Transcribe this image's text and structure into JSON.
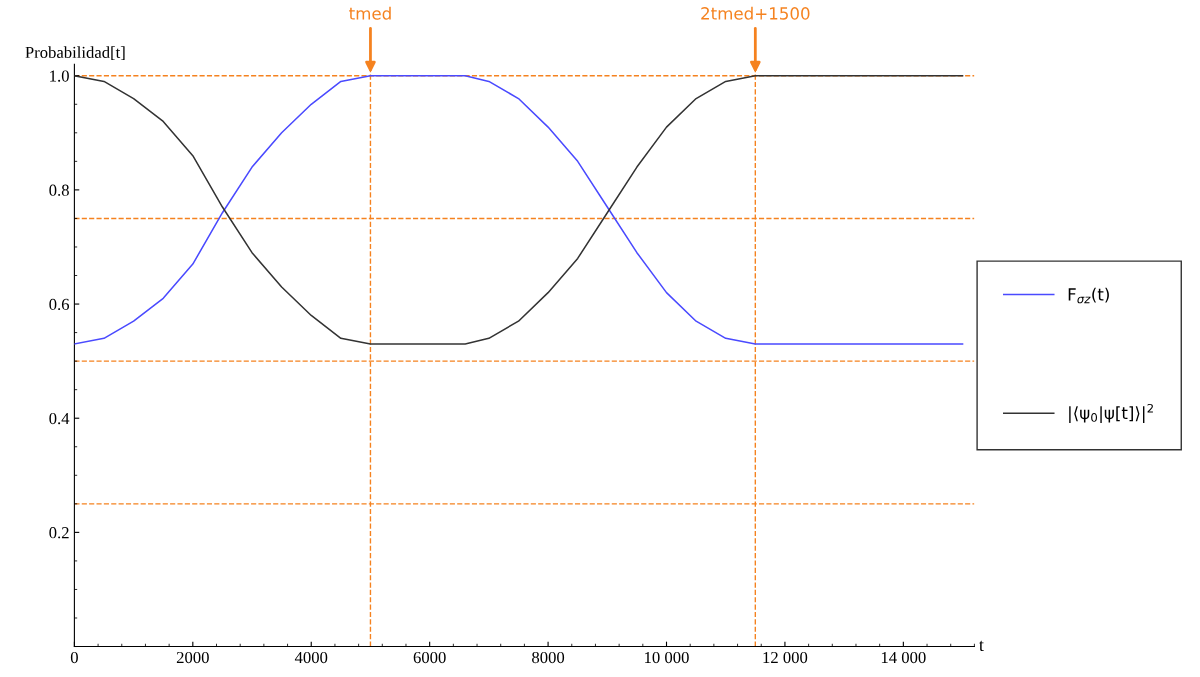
{
  "chart_data": {
    "type": "line",
    "xlabel": "t",
    "ylabel": "Probabilidad[t]",
    "xlim": [
      0,
      15200
    ],
    "ylim": [
      0,
      1.02
    ],
    "xticks": [
      0,
      2000,
      4000,
      6000,
      8000,
      {
        "value": 10000,
        "label": "10 000"
      },
      {
        "value": 12000,
        "label": "12 000"
      },
      {
        "value": 14000,
        "label": "14 000"
      }
    ],
    "yticks": [
      0.2,
      0.4,
      0.6,
      0.8,
      {
        "value": 1.0,
        "label": "1.0"
      }
    ],
    "grid": false,
    "legend": "right",
    "marker": "none",
    "line_style": "solid",
    "series": [
      {
        "name": "F$_{σz}$(t)",
        "color": "#4a4aff",
        "x": [
          0,
          500,
          1000,
          1500,
          2000,
          2500,
          3000,
          3500,
          4000,
          4500,
          5000,
          6600,
          7000,
          7500,
          8000,
          8500,
          9000,
          9500,
          10000,
          10500,
          11000,
          11500,
          15000
        ],
        "values": [
          0.53,
          0.54,
          0.57,
          0.61,
          0.67,
          0.76,
          0.84,
          0.9,
          0.95,
          0.99,
          1.0,
          1.0,
          0.99,
          0.96,
          0.91,
          0.85,
          0.77,
          0.69,
          0.62,
          0.57,
          0.54,
          0.53,
          0.53
        ]
      },
      {
        "name": "|⟨ψ$_{0}$|ψ[t]⟩|$^{2}$",
        "color": "#333333",
        "x": [
          0,
          500,
          1000,
          1500,
          2000,
          2500,
          3000,
          3500,
          4000,
          4500,
          5000,
          6600,
          7000,
          7500,
          8000,
          8500,
          9000,
          9500,
          10000,
          10500,
          11000,
          11500,
          15000
        ],
        "values": [
          1.0,
          0.99,
          0.96,
          0.92,
          0.86,
          0.77,
          0.69,
          0.63,
          0.58,
          0.54,
          0.53,
          0.53,
          0.54,
          0.57,
          0.62,
          0.68,
          0.76,
          0.84,
          0.91,
          0.96,
          0.99,
          1.0,
          1.0
        ]
      }
    ],
    "ref_lines": [
      {
        "axis": "y",
        "value": 1.0,
        "color": "#f5821f",
        "line_style": "dashed"
      },
      {
        "axis": "y",
        "value": 0.75,
        "color": "#f5821f",
        "line_style": "dashed"
      },
      {
        "axis": "y",
        "value": 0.5,
        "color": "#f5821f",
        "line_style": "dashed"
      },
      {
        "axis": "y",
        "value": 0.25,
        "color": "#f5821f",
        "line_style": "dashed"
      },
      {
        "axis": "x",
        "value": 5000,
        "color": "#f5821f",
        "line_style": "dashed"
      },
      {
        "axis": "x",
        "value": 11500,
        "color": "#f5821f",
        "line_style": "dashed"
      }
    ],
    "annotations": [
      {
        "text": "tmed",
        "x": 5000,
        "y": 1.0
      },
      {
        "text": "2tmed+1500",
        "x": 11500,
        "y": 1.0
      }
    ]
  }
}
